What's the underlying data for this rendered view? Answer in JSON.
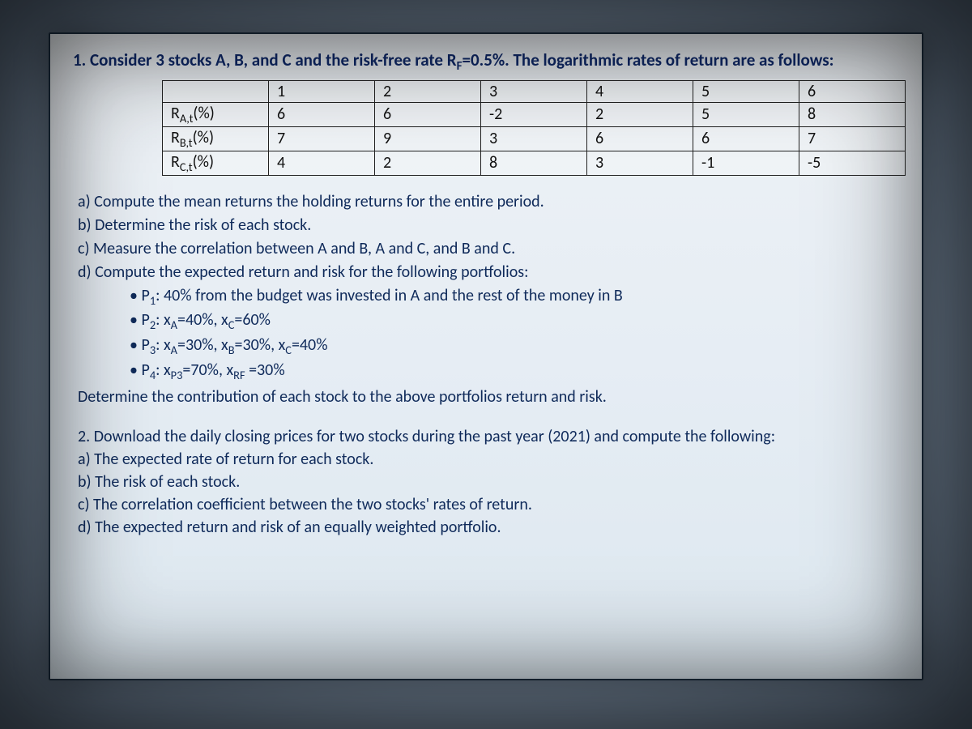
{
  "question1": {
    "intro_prefix": "1. Consider 3 stocks A, B, and C and the risk-free rate R",
    "intro_sub": "F",
    "intro_suffix": "=0.5%. The logarithmic rates of return are as follows:",
    "table": {
      "columns": [
        "",
        "1",
        "2",
        "3",
        "4",
        "5",
        "6"
      ],
      "rows": [
        {
          "label_prefix": "R",
          "label_sub": "A,t",
          "label_suffix": "(%)",
          "cells": [
            "6",
            "6",
            "-2",
            "2",
            "5",
            "8"
          ]
        },
        {
          "label_prefix": "R",
          "label_sub": "B,t",
          "label_suffix": "(%)",
          "cells": [
            "7",
            "9",
            "3",
            "6",
            "6",
            "7"
          ]
        },
        {
          "label_prefix": "R",
          "label_sub": "C,t",
          "label_suffix": "(%)",
          "cells": [
            "4",
            "2",
            "8",
            "3",
            "-1",
            "-5"
          ]
        }
      ],
      "border_color": "#222222",
      "cell_bg": "rgba(255,255,255,0.25)",
      "font_size_pt": 15
    },
    "parts": {
      "a": "a)  Compute the mean returns the holding returns for the entire period.",
      "b": "b)  Determine the risk of each stock.",
      "c": "c)  Measure the correlation between A and B, A and C, and B and C.",
      "d": "d)  Compute the expected return and risk for the following portfolios:"
    },
    "portfolios": [
      {
        "pre": "P",
        "sub": "1",
        "post": ": 40% from the budget was invested in A and the rest of the money in B"
      },
      {
        "pre": "P",
        "sub": "2",
        "post": ": x",
        "terms": [
          {
            "s": "A",
            "t": "=40%, x"
          },
          {
            "s": "C",
            "t": "=60%"
          }
        ]
      },
      {
        "pre": "P",
        "sub": "3",
        "post": ": x",
        "terms": [
          {
            "s": "A",
            "t": "=30%, x"
          },
          {
            "s": "B",
            "t": "=30%, x"
          },
          {
            "s": "C",
            "t": "=40%"
          }
        ]
      },
      {
        "pre": "P",
        "sub": "4",
        "post": ": x",
        "terms": [
          {
            "s": "P3",
            "t": "=70%, x"
          },
          {
            "s": "RF",
            "t": " =30%"
          }
        ]
      }
    ],
    "closing": "Determine the contribution of each stock to the above portfolios return and risk."
  },
  "question2": {
    "intro": "2. Download the daily closing prices for two stocks during the past year (2021) and compute the following:",
    "a": "a) The expected rate of return for each stock.",
    "b": "b) The risk of each stock.",
    "c": "c) The correlation coefficient between the two stocks' rates of return.",
    "d": "d) The expected return and risk of an equally weighted portfolio."
  },
  "style": {
    "page_bg_outer": "#7a8ca0",
    "page_bg_inner": "#e6edf4",
    "text_color": "#102a6a",
    "font_family": "Calibri",
    "heading_fontsize_pt": 16,
    "body_fontsize_pt": 15
  }
}
